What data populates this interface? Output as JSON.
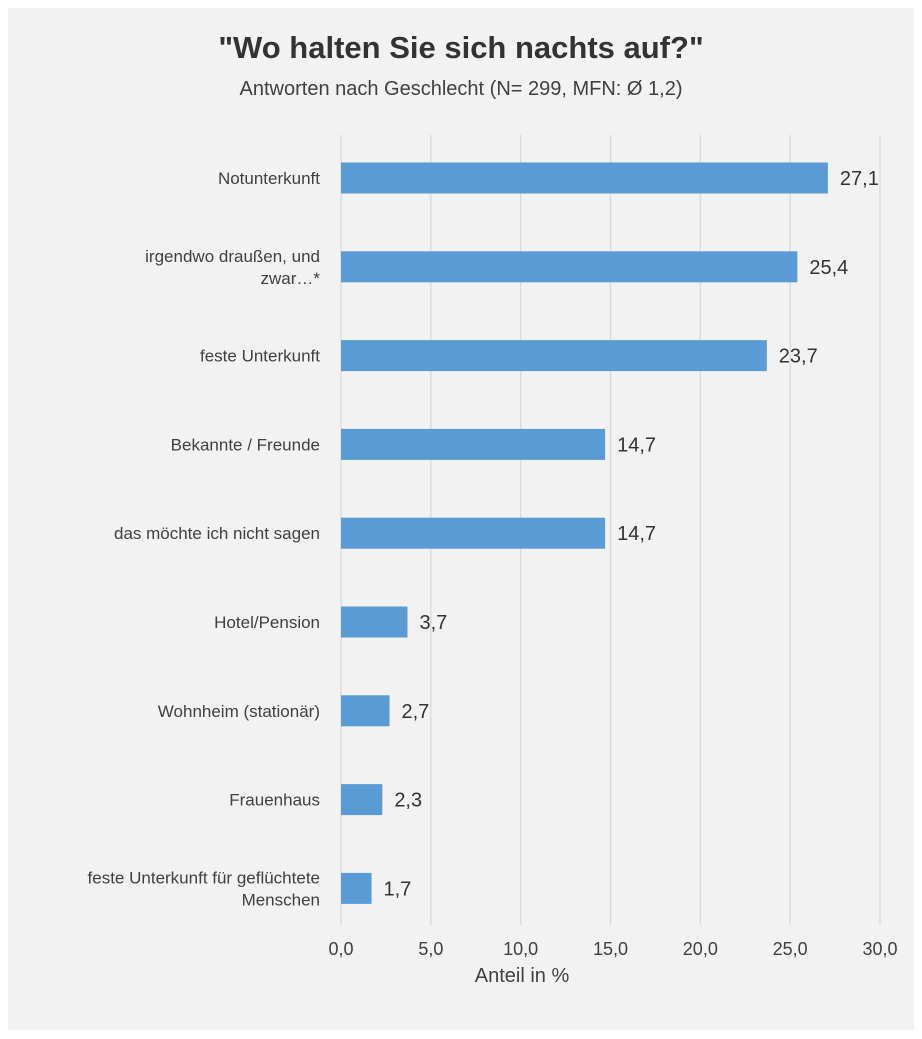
{
  "chart_data": {
    "type": "bar",
    "orientation": "horizontal",
    "title": "\"Wo halten Sie sich nachts auf?\"",
    "subtitle": "Antworten nach Geschlecht (N= 299, MFN: Ø 1,2)",
    "xlabel": "Anteil in %",
    "ylabel": "",
    "xlim": [
      0,
      30
    ],
    "ticks": [
      "0,0",
      "5,0",
      "10,0",
      "15,0",
      "20,0",
      "25,0",
      "30,0"
    ],
    "grid": true,
    "legend": "none",
    "bar_color": "#5b9bd5",
    "categories": [
      "Notunterkunft",
      "irgendwo draußen, und zwar…*",
      "feste Unterkunft",
      "Bekannte / Freunde",
      "das möchte ich nicht sagen",
      "Hotel/Pension",
      "Wohnheim (stationär)",
      "Frauenhaus",
      "feste Unterkunft für geflüchtete Menschen"
    ],
    "category_lines": [
      [
        "Notunterkunft"
      ],
      [
        "irgendwo draußen, und",
        "zwar…*"
      ],
      [
        "feste Unterkunft"
      ],
      [
        "Bekannte / Freunde"
      ],
      [
        "das möchte ich nicht sagen"
      ],
      [
        "Hotel/Pension"
      ],
      [
        "Wohnheim (stationär)"
      ],
      [
        "Frauenhaus"
      ],
      [
        "feste Unterkunft für geflüchtete",
        "Menschen"
      ]
    ],
    "values": [
      27.1,
      25.4,
      23.7,
      14.7,
      14.7,
      3.7,
      2.7,
      2.3,
      1.7
    ],
    "value_labels": [
      "27,1",
      "25,4",
      "23,7",
      "14,7",
      "14,7",
      "3,7",
      "2,7",
      "2,3",
      "1,7"
    ]
  }
}
